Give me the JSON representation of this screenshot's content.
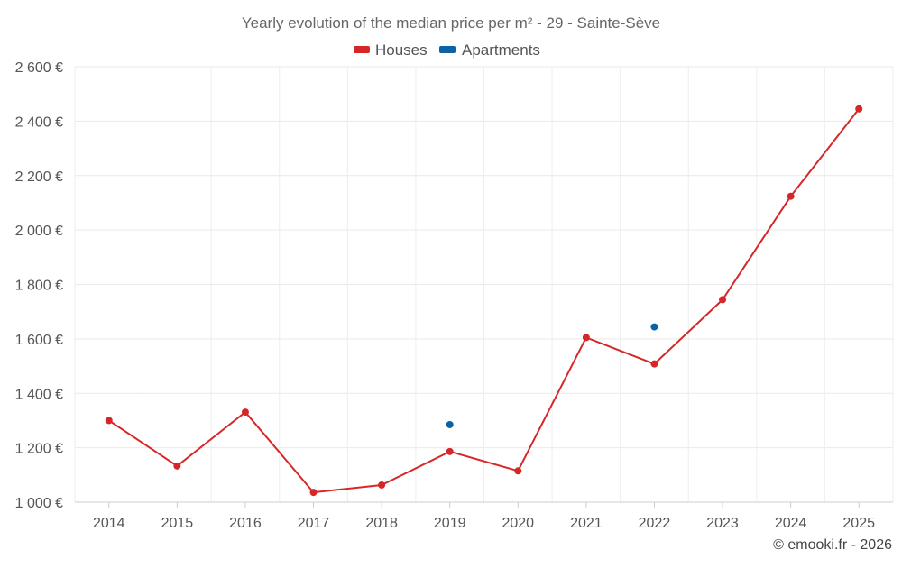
{
  "chart_data": {
    "type": "line",
    "title": "Yearly evolution of the median price per m² - 29 - Sainte-Sève",
    "categories": [
      "2014",
      "2015",
      "2016",
      "2017",
      "2018",
      "2019",
      "2020",
      "2021",
      "2022",
      "2023",
      "2024",
      "2025"
    ],
    "series": [
      {
        "name": "Houses",
        "color": "#d62728",
        "values": [
          1300,
          1133,
          1331,
          1036,
          1063,
          1186,
          1115,
          1605,
          1508,
          1744,
          2124,
          2445
        ]
      },
      {
        "name": "Apartments",
        "color": "#0b62a4",
        "values": [
          null,
          null,
          null,
          null,
          null,
          1285,
          null,
          null,
          1644,
          null,
          null,
          null
        ]
      }
    ],
    "y_ticks": [
      1000,
      1200,
      1400,
      1600,
      1800,
      2000,
      2200,
      2400,
      2600
    ],
    "y_tick_labels": [
      "1 000 €",
      "1 200 €",
      "1 400 €",
      "1 600 €",
      "1 800 €",
      "2 000 €",
      "2 200 €",
      "2 400 €",
      "2 600 €"
    ],
    "ylim": [
      1000,
      2600
    ],
    "xlabel": "",
    "ylabel": "",
    "legend_position": "top-center",
    "grid": true
  },
  "credit": "© emooki.fr - 2026"
}
